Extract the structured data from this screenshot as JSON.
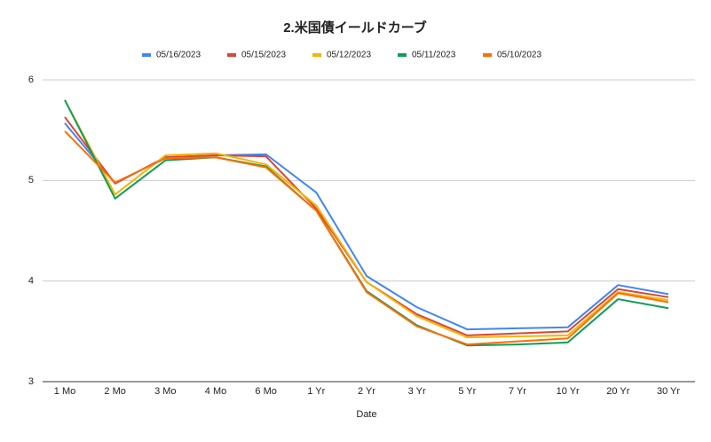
{
  "chart_data": {
    "type": "line",
    "title": "2.米国債イールドカーブ",
    "x_label": "Date",
    "categories": [
      "1 Mo",
      "2 Mo",
      "3 Mo",
      "4 Mo",
      "6 Mo",
      "1 Yr",
      "2 Yr",
      "3 Yr",
      "5 Yr",
      "7 Yr",
      "10 Yr",
      "20 Yr",
      "30 Yr"
    ],
    "series": [
      {
        "name": "05/16/2023",
        "color": "#4285f4",
        "values": [
          5.57,
          4.97,
          5.23,
          5.25,
          5.26,
          4.88,
          4.05,
          3.74,
          3.52,
          3.53,
          3.54,
          3.96,
          3.87
        ]
      },
      {
        "name": "05/15/2023",
        "color": "#db4437",
        "values": [
          5.63,
          4.97,
          5.23,
          5.25,
          5.24,
          4.72,
          3.99,
          3.67,
          3.46,
          3.48,
          3.5,
          3.92,
          3.84
        ]
      },
      {
        "name": "05/12/2023",
        "color": "#f4b400",
        "values": [
          5.8,
          4.86,
          5.25,
          5.27,
          5.16,
          4.75,
          3.99,
          3.65,
          3.44,
          3.45,
          3.46,
          3.89,
          3.81
        ]
      },
      {
        "name": "05/11/2023",
        "color": "#0f9d58",
        "values": [
          5.8,
          4.82,
          5.2,
          5.23,
          5.14,
          4.7,
          3.9,
          3.56,
          3.36,
          3.37,
          3.39,
          3.82,
          3.73
        ]
      },
      {
        "name": "05/10/2023",
        "color": "#ff6d01",
        "values": [
          5.49,
          4.98,
          5.22,
          5.23,
          5.13,
          4.7,
          3.89,
          3.55,
          3.37,
          3.4,
          3.43,
          3.88,
          3.79
        ]
      }
    ],
    "ylim": [
      3,
      6
    ],
    "yticks": [
      3,
      4,
      5,
      6
    ],
    "grid": true,
    "legend": "top"
  }
}
